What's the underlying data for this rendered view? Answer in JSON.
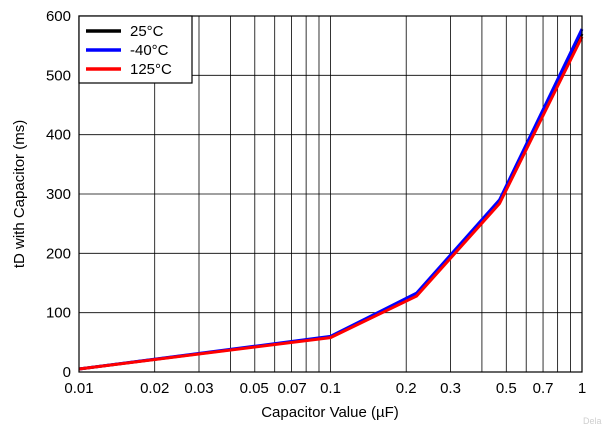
{
  "chart_data": {
    "type": "line",
    "title": "",
    "xlabel": "Capacitor Value (µF)",
    "ylabel": "tD with Capacitor (ms)",
    "xscale": "log",
    "xlim": [
      0.01,
      1
    ],
    "ylim": [
      0,
      600
    ],
    "grid": true,
    "legend_position": "top-left",
    "x_tick_labels": [
      {
        "value": 0.01,
        "label": "0.01"
      },
      {
        "value": 0.02,
        "label": "0.02"
      },
      {
        "value": 0.03,
        "label": "0.03"
      },
      {
        "value": 0.05,
        "label": "0.05"
      },
      {
        "value": 0.07,
        "label": "0.07"
      },
      {
        "value": 0.1,
        "label": "0.1"
      },
      {
        "value": 0.2,
        "label": "0.2"
      },
      {
        "value": 0.3,
        "label": "0.3"
      },
      {
        "value": 0.5,
        "label": "0.5"
      },
      {
        "value": 0.7,
        "label": "0.7"
      },
      {
        "value": 1,
        "label": "1"
      }
    ],
    "y_ticks": [
      0,
      100,
      200,
      300,
      400,
      500,
      600
    ],
    "series": [
      {
        "name": "25°C",
        "color": "#000000",
        "x": [
          0.01,
          0.1,
          0.22,
          0.47,
          1
        ],
        "y": [
          5,
          59,
          130,
          287,
          570
        ]
      },
      {
        "name": "-40°C",
        "color": "#0000ff",
        "x": [
          0.01,
          0.1,
          0.22,
          0.47,
          1
        ],
        "y": [
          5,
          60,
          133,
          290,
          578
        ]
      },
      {
        "name": "125°C",
        "color": "#ff0000",
        "x": [
          0.01,
          0.1,
          0.22,
          0.47,
          1
        ],
        "y": [
          5,
          58,
          128,
          284,
          565
        ]
      }
    ]
  },
  "watermark": "Dela"
}
